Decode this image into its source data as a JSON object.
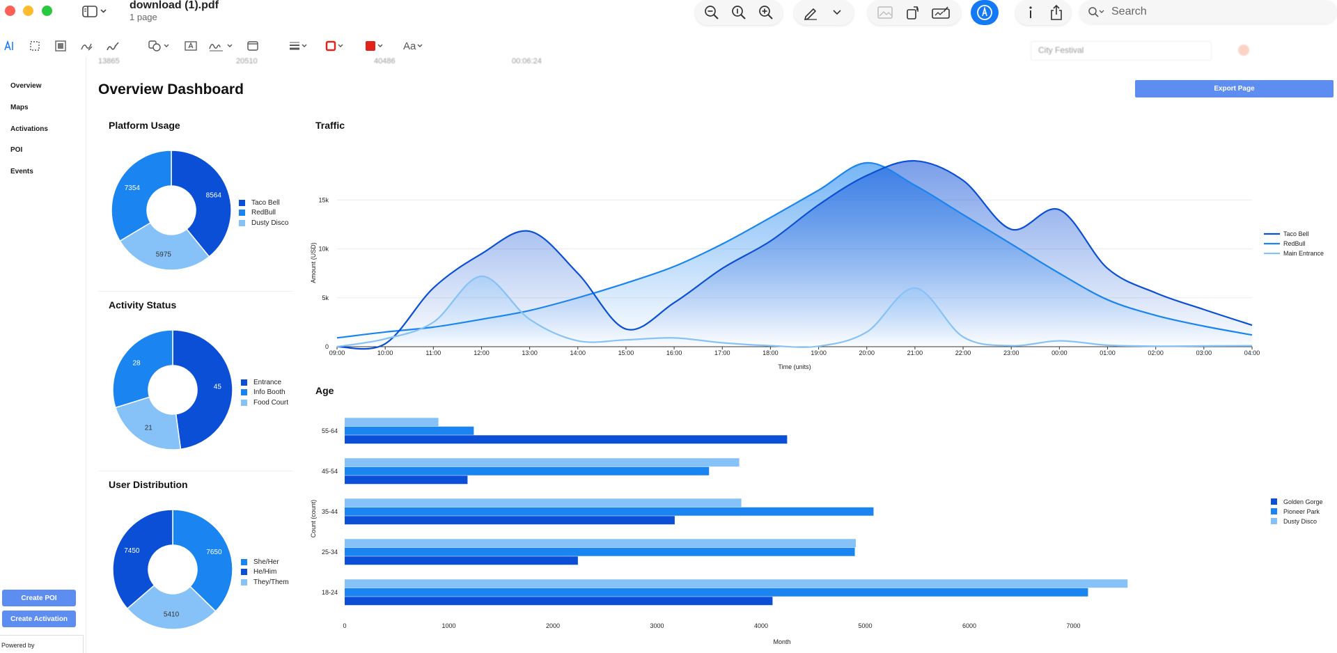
{
  "window": {
    "doc_title": "download (1).pdf",
    "doc_subtitle": "1 page",
    "search_placeholder": "Search"
  },
  "markup_toolbar": {
    "text_style_label": "Aa"
  },
  "background_strip": {
    "values": [
      "13865",
      "20510",
      "40486",
      "00:06:24"
    ],
    "right_field": "City Festival"
  },
  "nav": {
    "items": [
      "Overview",
      "Maps",
      "Activations",
      "POI",
      "Events"
    ],
    "create_poi": "Create POI",
    "create_activation": "Create Activation",
    "powered_by": "Powered by"
  },
  "dashboard": {
    "title": "Overview Dashboard",
    "export_label": "Export Page"
  },
  "colors": {
    "dark": "#0b4fd6",
    "mid": "#1a84f0",
    "light": "#86c2f7",
    "button": "#5d8df0",
    "accent": "#1479f5"
  },
  "chart_data": [
    {
      "id": "platform",
      "type": "pie",
      "title": "Platform Usage",
      "labels": [
        "Taco Bell",
        "RedBull",
        "Dusty Disco"
      ],
      "values": [
        8564,
        5975,
        7354
      ],
      "slice_labels": [
        "8564",
        "5975",
        "7354"
      ],
      "legend": [
        "Taco Bell",
        "RedBull",
        "Dusty Disco"
      ]
    },
    {
      "id": "activity",
      "type": "pie",
      "title": "Activity Status",
      "labels": [
        "Entrance",
        "Food Court",
        "Info Booth"
      ],
      "values": [
        45,
        21,
        28
      ],
      "slice_labels": [
        "45",
        "21",
        "28"
      ],
      "legend": [
        "Entrance",
        "Info Booth",
        "Food Court"
      ]
    },
    {
      "id": "users",
      "type": "pie",
      "title": "User Distribution",
      "labels": [
        "She/Her",
        "They/Them",
        "He/Him"
      ],
      "values": [
        7650,
        5410,
        7450
      ],
      "slice_labels": [
        "7650",
        "5410",
        "7450"
      ],
      "legend": [
        "She/Her",
        "He/Him",
        "They/Them"
      ]
    },
    {
      "id": "traffic",
      "type": "area",
      "title": "Traffic",
      "xlabel": "Time (units)",
      "ylabel": "Amount (USD)",
      "x": [
        "09:00",
        "10:00",
        "11:00",
        "12:00",
        "13:00",
        "14:00",
        "15:00",
        "16:00",
        "17:00",
        "18:00",
        "19:00",
        "20:00",
        "21:00",
        "22:00",
        "23:00",
        "00:00",
        "01:00",
        "02:00",
        "03:00",
        "04:00"
      ],
      "ylim": [
        0,
        20000
      ],
      "yticks": [
        "0",
        "5k",
        "10k",
        "15k"
      ],
      "grid": true,
      "legend_position": "right",
      "series": [
        {
          "name": "Taco Bell",
          "values": [
            0,
            300,
            6000,
            9500,
            11800,
            7500,
            1800,
            4500,
            8000,
            10800,
            14500,
            17500,
            19000,
            17000,
            12000,
            14000,
            8000,
            5500,
            3800,
            2200
          ]
        },
        {
          "name": "RedBull",
          "values": [
            900,
            1500,
            2000,
            2800,
            3700,
            5000,
            6500,
            8200,
            10500,
            13200,
            16000,
            18800,
            16500,
            13500,
            10500,
            7500,
            4800,
            3200,
            2100,
            1200
          ]
        },
        {
          "name": "Main Entrance",
          "values": [
            0,
            800,
            2500,
            7200,
            2800,
            600,
            700,
            900,
            400,
            100,
            50,
            1500,
            6000,
            1000,
            100,
            600,
            150,
            50,
            80,
            100
          ]
        }
      ]
    },
    {
      "id": "age",
      "type": "bar",
      "orientation": "horizontal",
      "title": "Age",
      "xlabel": "Month",
      "ylabel": "Count (count)",
      "categories": [
        "55-64",
        "45-54",
        "35-44",
        "25-34",
        "18-24"
      ],
      "xlim": [
        0,
        8000
      ],
      "xticks": [
        "0",
        "1000",
        "2000",
        "3000",
        "4000",
        "5000",
        "6000",
        "7000"
      ],
      "legend_position": "right",
      "series": [
        {
          "name": "Golden Gorge",
          "values": [
            4250,
            1180,
            3170,
            2240,
            4110
          ]
        },
        {
          "name": "Pioneer Park",
          "values": [
            1240,
            3500,
            5080,
            4900,
            7140
          ]
        },
        {
          "name": "Dusty Disco",
          "values": [
            900,
            3790,
            3810,
            4910,
            7520
          ]
        }
      ]
    }
  ]
}
